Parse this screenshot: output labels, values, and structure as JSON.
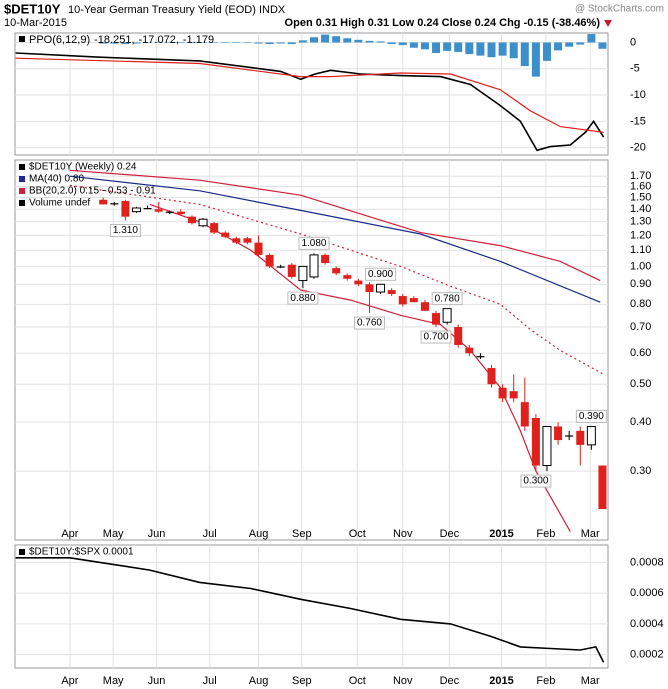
{
  "header": {
    "symbol": "$DET10Y",
    "name": "10-Year German Treasury Yield (EOD) INDX",
    "date": "10-Mar-2015",
    "quote": "Open 0.31 High 0.31 Low 0.24 Close 0.24 Chg -0.15 (-38.46%)",
    "watermark": "@ StockCharts.com"
  },
  "chart_data": [
    {
      "type": "line",
      "label": "PPO(6,12,9)",
      "xlim": [
        -7.95,
        45.5
      ],
      "ylim": [
        -21.4,
        1.8
      ],
      "xticks": [
        -3,
        0.9,
        4.8,
        9.6,
        14,
        17.9,
        22.9,
        27,
        31.2,
        35.9,
        39.9,
        43.9
      ],
      "yticks": [
        0,
        -5,
        -10,
        -15,
        -20
      ],
      "grid": true,
      "series": [
        {
          "name": "-18.251,",
          "color": "#000000",
          "x": [
            -7.9,
            -0.3,
            8.7,
            16,
            17.8,
            19.1,
            20.5,
            23.2,
            26.8,
            30.4,
            33.1,
            35.8,
            37.6,
            39.1,
            40.3,
            42.1,
            43.5,
            44.2,
            45.1
          ],
          "values": [
            -2,
            -2.8,
            -3.5,
            -5.5,
            -7,
            -6,
            -5.3,
            -6,
            -6.3,
            -6.5,
            -8,
            -12,
            -15,
            -20.5,
            -19.8,
            -19.5,
            -17,
            -15,
            -18
          ]
        },
        {
          "name": "-17.072,",
          "color": "#e0201c",
          "x": [
            -7.9,
            8.7,
            17.8,
            20.5,
            26.8,
            31.3,
            35.8,
            38.5,
            41.2,
            44.8,
            45.1
          ],
          "values": [
            -3,
            -4,
            -6.5,
            -6.5,
            -5.8,
            -6,
            -9,
            -13,
            -16,
            -17,
            -17.1
          ]
        },
        {
          "name": "-1.179",
          "color": "#3d8fcc",
          "style": "bar",
          "x": [
            0,
            1,
            2,
            3,
            4,
            5,
            6,
            7,
            8,
            9,
            10,
            11,
            12,
            13,
            14,
            15,
            16,
            17,
            18,
            19,
            20,
            21,
            22,
            23,
            24,
            25,
            26,
            27,
            28,
            29,
            30,
            31,
            32,
            33,
            34,
            35,
            36,
            37,
            38,
            39,
            40,
            41,
            42,
            43,
            44,
            45
          ],
          "values": [
            -0.2,
            -0.2,
            -0.3,
            -0.2,
            0,
            0.1,
            0.1,
            0,
            -0.1,
            0,
            -0.1,
            -0.1,
            -0.1,
            0,
            -0.2,
            -0.3,
            -0.2,
            -0.3,
            0.4,
            1.0,
            1.5,
            1.2,
            0.8,
            0.5,
            0.3,
            0.2,
            -0.3,
            -0.5,
            -1.0,
            -1.3,
            -2.0,
            -1.6,
            -1.8,
            -2.2,
            -2.5,
            -2.8,
            -2.5,
            -3,
            -4.5,
            -6.5,
            -3.5,
            -1.5,
            -0.8,
            -0.4,
            1.6,
            -1.2
          ]
        }
      ]
    },
    {
      "type": "candlestick",
      "log_scale": true,
      "xlim": [
        -7.95,
        45.5
      ],
      "ylim": [
        0.2,
        1.87
      ],
      "xticks": [
        {
          "value": -3,
          "label": "Apr"
        },
        {
          "value": 0.9,
          "label": "May"
        },
        {
          "value": 4.8,
          "label": "Jun"
        },
        {
          "value": 9.6,
          "label": "Jul"
        },
        {
          "value": 14,
          "label": "Aug"
        },
        {
          "value": 17.9,
          "label": "Sep"
        },
        {
          "value": 22.9,
          "label": "Oct"
        },
        {
          "value": 27,
          "label": "Nov"
        },
        {
          "value": 31.2,
          "label": "Dec"
        },
        {
          "value": 35.9,
          "label": "2015"
        },
        {
          "value": 39.9,
          "label": "Feb"
        },
        {
          "value": 43.9,
          "label": "Mar"
        }
      ],
      "yticks": [
        {
          "value": 1.7,
          "label": "1.70"
        },
        {
          "value": 1.6,
          "label": "1.60"
        },
        {
          "value": 1.5,
          "label": "1.50"
        },
        {
          "value": 1.4,
          "label": "1.40"
        },
        {
          "value": 1.3,
          "label": "1.30"
        },
        {
          "value": 1.2,
          "label": "1.20"
        },
        {
          "value": 1.1,
          "label": "1.10"
        },
        {
          "value": 1,
          "label": "1.00"
        },
        {
          "value": 0.9,
          "label": "0.90"
        },
        {
          "value": 0.8,
          "label": "0.80"
        },
        {
          "value": 0.7,
          "label": "0.70"
        },
        {
          "value": 0.6,
          "label": "0.60"
        },
        {
          "value": 0.5,
          "label": "0.50"
        },
        {
          "value": 0.4,
          "label": "0.40"
        },
        {
          "value": 0.3,
          "label": "0.30"
        }
      ],
      "grid": true,
      "name": "$DET10Y (Weekly) 0.24",
      "volume_label": "Volume undef",
      "up_color": "#ffffff",
      "down_color": "#e0201c",
      "x": [
        0,
        1,
        2,
        3,
        4,
        5,
        6,
        7,
        8,
        9,
        10,
        11,
        12,
        13,
        14,
        15,
        16,
        17,
        18,
        19,
        20,
        21,
        22,
        23,
        24,
        25,
        26,
        27,
        28,
        29,
        30,
        31,
        32,
        33,
        34,
        35,
        36,
        37,
        38,
        39,
        40,
        41,
        42,
        43,
        44,
        45
      ],
      "open": [
        1.48,
        1.45,
        1.47,
        1.38,
        1.41,
        1.4,
        1.38,
        1.38,
        1.34,
        1.27,
        1.29,
        1.22,
        1.18,
        1.18,
        1.15,
        1.07,
        1.0,
        1.01,
        0.92,
        0.94,
        1.07,
        0.99,
        0.95,
        0.92,
        0.9,
        0.86,
        0.87,
        0.84,
        0.83,
        0.81,
        0.76,
        0.72,
        0.7,
        0.62,
        0.59,
        0.55,
        0.49,
        0.48,
        0.45,
        0.41,
        0.31,
        0.39,
        0.37,
        0.38,
        0.35,
        0.31
      ],
      "high": [
        1.5,
        1.46,
        1.48,
        1.42,
        1.43,
        1.46,
        1.39,
        1.4,
        1.35,
        1.33,
        1.3,
        1.23,
        1.19,
        1.19,
        1.2,
        1.08,
        1.01,
        1.02,
        1.0,
        1.08,
        1.08,
        1.0,
        0.96,
        0.93,
        0.91,
        0.9,
        0.88,
        0.85,
        0.84,
        0.82,
        0.77,
        0.78,
        0.71,
        0.63,
        0.6,
        0.56,
        0.5,
        0.53,
        0.52,
        0.42,
        0.39,
        0.4,
        0.38,
        0.39,
        0.39,
        0.31
      ],
      "low": [
        1.44,
        1.43,
        1.31,
        1.37,
        1.4,
        1.37,
        1.36,
        1.35,
        1.28,
        1.26,
        1.21,
        1.18,
        1.14,
        1.14,
        1.06,
        0.99,
        0.99,
        0.93,
        0.88,
        0.93,
        1.01,
        0.95,
        0.92,
        0.89,
        0.76,
        0.85,
        0.84,
        0.79,
        0.81,
        0.77,
        0.7,
        0.71,
        0.62,
        0.59,
        0.58,
        0.49,
        0.45,
        0.45,
        0.38,
        0.3,
        0.3,
        0.35,
        0.36,
        0.31,
        0.34,
        0.24
      ],
      "close": [
        1.44,
        1.45,
        1.34,
        1.41,
        1.41,
        1.38,
        1.38,
        1.36,
        1.29,
        1.32,
        1.22,
        1.19,
        1.15,
        1.15,
        1.07,
        1.0,
        1.0,
        0.94,
        1.0,
        1.07,
        1.02,
        0.96,
        0.93,
        0.9,
        0.86,
        0.9,
        0.85,
        0.8,
        0.81,
        0.77,
        0.71,
        0.78,
        0.63,
        0.6,
        0.59,
        0.5,
        0.46,
        0.46,
        0.39,
        0.31,
        0.39,
        0.36,
        0.37,
        0.35,
        0.39,
        0.24
      ],
      "series": [
        {
          "name": "MA(40) 0.80",
          "color": "#1a2a8c",
          "x": [
            -3,
            8.7,
            17.8,
            28.6,
            35.8,
            44.8
          ],
          "values": [
            1.7,
            1.56,
            1.39,
            1.21,
            1.03,
            0.81
          ]
        },
        {
          "name": "BB(20,2.0) 0.15 - 0.53 - 0.91",
          "color": "#d0203a",
          "x": [
            -3,
            8.7,
            17.8,
            28.6,
            35.8,
            41.2,
            44.8
          ],
          "values": [
            1.76,
            1.66,
            1.52,
            1.22,
            1.13,
            1.03,
            0.92
          ]
        },
        {
          "color": "#d0203a",
          "dashed": true,
          "x": [
            -3,
            8.7,
            17.8,
            26.8,
            31.3,
            35.8,
            38.5,
            41.2,
            45.1
          ],
          "values": [
            1.61,
            1.44,
            1.21,
            1.0,
            0.89,
            0.8,
            0.69,
            0.61,
            0.53
          ]
        },
        {
          "color": "#d0203a",
          "x": [
            4.2,
            8.7,
            13.3,
            17.8,
            22.3,
            26.8,
            30.4,
            33.1,
            35.8,
            37.6,
            39,
            42.1
          ],
          "values": [
            1.44,
            1.3,
            1.1,
            0.87,
            0.82,
            0.75,
            0.71,
            0.61,
            0.49,
            0.38,
            0.3,
            0.21
          ]
        }
      ],
      "annotations": [
        {
          "label": "1.310",
          "value": 1.31,
          "x": 2,
          "position": "below"
        },
        {
          "label": "1.080",
          "value": 1.08,
          "x": 19,
          "position": "above"
        },
        {
          "label": "0.880",
          "value": 0.88,
          "x": 18,
          "position": "below"
        },
        {
          "label": "0.900",
          "value": 0.9,
          "x": 25,
          "position": "above"
        },
        {
          "label": "0.760",
          "value": 0.76,
          "x": 24,
          "position": "below"
        },
        {
          "label": "0.780",
          "value": 0.78,
          "x": 31,
          "position": "above"
        },
        {
          "label": "0.700",
          "value": 0.7,
          "x": 30,
          "position": "below"
        },
        {
          "label": "0.390",
          "value": 0.39,
          "x": 44,
          "position": "above"
        },
        {
          "label": "0.300",
          "value": 0.3,
          "x": 39,
          "position": "below"
        }
      ]
    },
    {
      "type": "line",
      "xlim": [
        -7.95,
        45.5
      ],
      "ylim": [
        0.000113,
        0.000913
      ],
      "xticks": [
        {
          "value": -3,
          "label": "Apr"
        },
        {
          "value": 0.9,
          "label": "May"
        },
        {
          "value": 4.8,
          "label": "Jun"
        },
        {
          "value": 9.6,
          "label": "Jul"
        },
        {
          "value": 14,
          "label": "Aug"
        },
        {
          "value": 17.9,
          "label": "Sep"
        },
        {
          "value": 22.9,
          "label": "Oct"
        },
        {
          "value": 27,
          "label": "Nov"
        },
        {
          "value": 31.2,
          "label": "Dec"
        },
        {
          "value": 35.9,
          "label": "2015"
        },
        {
          "value": 39.9,
          "label": "Feb"
        },
        {
          "value": 43.9,
          "label": "Mar"
        }
      ],
      "yticks": [
        0.0008,
        0.0006,
        0.0004,
        0.0002
      ],
      "grid": true,
      "series": [
        {
          "name": "$DET10Y:$SPX 0.0001",
          "color": "#000000",
          "x": [
            -7.9,
            -3,
            -0.3,
            4.2,
            8.7,
            13.3,
            17.8,
            22.3,
            26.8,
            31.3,
            34.9,
            37.6,
            40.3,
            43,
            44.4,
            45.1
          ],
          "values": [
            0.00083,
            0.00083,
            0.0008,
            0.00075,
            0.00067,
            0.00063,
            0.00056,
            0.0005,
            0.00043,
            0.0004,
            0.00032,
            0.00025,
            0.00024,
            0.00023,
            0.00025,
            0.00015
          ]
        }
      ]
    }
  ]
}
